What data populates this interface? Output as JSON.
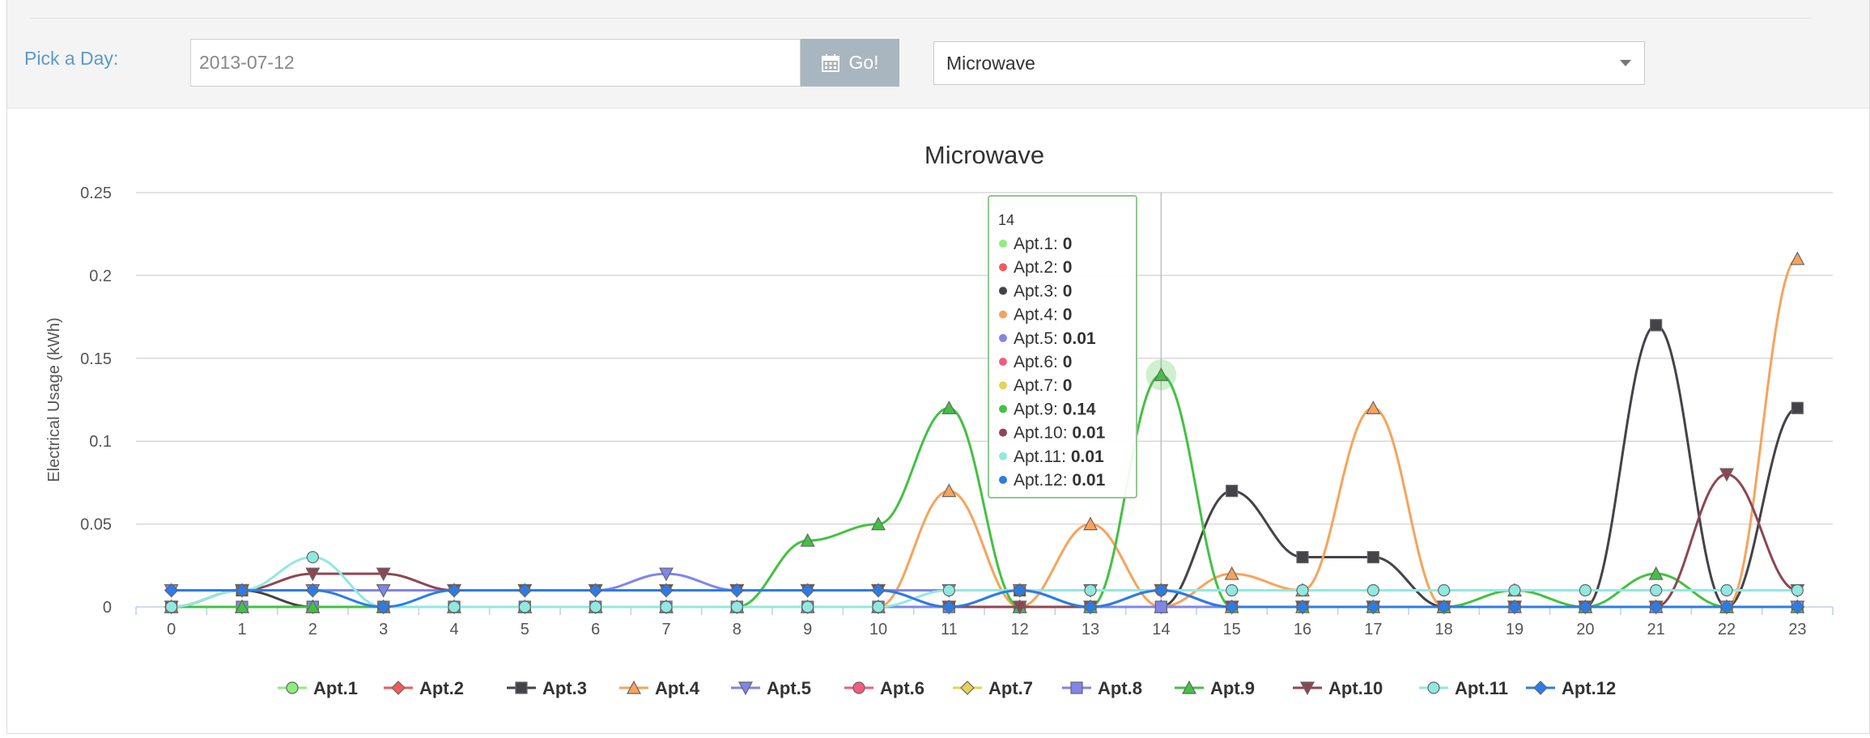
{
  "toolbar": {
    "day_label": "Pick a Day:",
    "date_value": "2013-07-12",
    "go_label": "Go!",
    "appliance_selected": "Microwave"
  },
  "chart_data": {
    "type": "line",
    "title": "Microwave",
    "xlabel": "",
    "ylabel": "Electrical Usage (kWh)",
    "x": [
      0,
      1,
      2,
      3,
      4,
      5,
      6,
      7,
      8,
      9,
      10,
      11,
      12,
      13,
      14,
      15,
      16,
      17,
      18,
      19,
      20,
      21,
      22,
      23
    ],
    "ylim": [
      0,
      0.25
    ],
    "yticks": [
      "0",
      "0.05",
      "0.1",
      "0.15",
      "0.2",
      "0.25"
    ],
    "yticks_values": [
      0,
      0.05,
      0.1,
      0.15,
      0.2,
      0.25
    ],
    "grid": true,
    "legend_position": "bottom",
    "series": [
      {
        "name": "Apt.1",
        "color": "#90ed7d",
        "marker": "circle",
        "values": [
          0,
          0,
          0,
          0,
          0,
          0,
          0,
          0,
          0,
          0,
          0,
          0,
          0,
          0,
          0,
          0,
          0,
          0,
          0,
          0,
          0,
          0,
          0,
          0
        ]
      },
      {
        "name": "Apt.2",
        "color": "#f45b5b",
        "marker": "diamond",
        "values": [
          0,
          0,
          0,
          0,
          0,
          0,
          0,
          0,
          0,
          0,
          0,
          0,
          0,
          0,
          0,
          0,
          0,
          0,
          0,
          0,
          0,
          0,
          0,
          0
        ]
      },
      {
        "name": "Apt.3",
        "color": "#434348",
        "marker": "square",
        "values": [
          0,
          0.01,
          0,
          0,
          0,
          0,
          0,
          0,
          0,
          0,
          0,
          0,
          0.01,
          0,
          0,
          0.07,
          0.03,
          0.03,
          0,
          0,
          0,
          0.17,
          0,
          0.12
        ]
      },
      {
        "name": "Apt.4",
        "color": "#f7a35c",
        "marker": "triangle",
        "values": [
          0,
          0,
          0,
          0,
          0,
          0,
          0,
          0,
          0,
          0,
          0,
          0.07,
          0,
          0.05,
          0,
          0.02,
          0.01,
          0.12,
          0,
          0,
          0,
          0,
          0,
          0.21
        ]
      },
      {
        "name": "Apt.5",
        "color": "#8085e9",
        "marker": "triangle-down",
        "values": [
          0.01,
          0.01,
          0.01,
          0.01,
          0.01,
          0.01,
          0.01,
          0.02,
          0.01,
          0.01,
          0.01,
          0.01,
          0.01,
          0.01,
          0.01,
          0,
          0,
          0,
          0,
          0,
          0,
          0,
          0,
          0
        ]
      },
      {
        "name": "Apt.6",
        "color": "#f15c80",
        "marker": "circle",
        "values": [
          0,
          0,
          0,
          0,
          0,
          0,
          0,
          0,
          0,
          0,
          0,
          0,
          0,
          0,
          0,
          0,
          0,
          0,
          0,
          0,
          0,
          0,
          0,
          0
        ]
      },
      {
        "name": "Apt.7",
        "color": "#e4d354",
        "marker": "diamond",
        "values": [
          0,
          0,
          0,
          0,
          0,
          0,
          0,
          0,
          0,
          0,
          0,
          0,
          0,
          0,
          0,
          0,
          0,
          0,
          0,
          0,
          0,
          0,
          0,
          0
        ]
      },
      {
        "name": "Apt.8",
        "color": "#8085e8",
        "marker": "square",
        "values": [
          0,
          0,
          0,
          0,
          0,
          0,
          0,
          0,
          0,
          0,
          0,
          0,
          0,
          0,
          0,
          0,
          0,
          0,
          0,
          0,
          0,
          0,
          0,
          0
        ]
      },
      {
        "name": "Apt.9",
        "color": "#43c143",
        "marker": "triangle",
        "values": [
          0,
          0,
          0,
          0,
          0,
          0,
          0,
          0,
          0,
          0.04,
          0.05,
          0.12,
          0,
          0,
          0.14,
          0,
          0,
          0,
          0,
          0.01,
          0,
          0.02,
          0,
          0
        ]
      },
      {
        "name": "Apt.10",
        "color": "#8d4653",
        "marker": "triangle-down",
        "values": [
          0,
          0.01,
          0.02,
          0.02,
          0.01,
          0.01,
          0.01,
          0.01,
          0.01,
          0.01,
          0.01,
          0,
          0,
          0,
          0.01,
          0,
          0,
          0,
          0,
          0,
          0,
          0,
          0.08,
          0.01
        ]
      },
      {
        "name": "Apt.11",
        "color": "#91e8e1",
        "marker": "circle",
        "values": [
          0,
          0.01,
          0.03,
          0,
          0,
          0,
          0,
          0,
          0,
          0,
          0,
          0.01,
          0.01,
          0.01,
          0.01,
          0.01,
          0.01,
          0.01,
          0.01,
          0.01,
          0.01,
          0.01,
          0.01,
          0.01
        ]
      },
      {
        "name": "Apt.12",
        "color": "#2b7ce9",
        "marker": "diamond",
        "values": [
          0.01,
          0.01,
          0.01,
          0,
          0.01,
          0.01,
          0.01,
          0.01,
          0.01,
          0.01,
          0.01,
          0,
          0.01,
          0,
          0.01,
          0,
          0,
          0,
          0,
          0,
          0,
          0,
          0,
          0
        ]
      }
    ],
    "tooltip": {
      "x": "14",
      "entries": [
        {
          "name": "Apt.1",
          "value": "0",
          "color": "#90ed7d"
        },
        {
          "name": "Apt.2",
          "value": "0",
          "color": "#f45b5b"
        },
        {
          "name": "Apt.3",
          "value": "0",
          "color": "#434348"
        },
        {
          "name": "Apt.4",
          "value": "0",
          "color": "#f7a35c"
        },
        {
          "name": "Apt.5",
          "value": "0.01",
          "color": "#8085e9"
        },
        {
          "name": "Apt.6",
          "value": "0",
          "color": "#f15c80"
        },
        {
          "name": "Apt.7",
          "value": "0",
          "color": "#e4d354"
        },
        {
          "name": "Apt.9",
          "value": "0.14",
          "color": "#43c143"
        },
        {
          "name": "Apt.10",
          "value": "0.01",
          "color": "#8d4653"
        },
        {
          "name": "Apt.11",
          "value": "0.01",
          "color": "#91e8e1"
        },
        {
          "name": "Apt.12",
          "value": "0.01",
          "color": "#2b7ce9"
        }
      ]
    }
  }
}
